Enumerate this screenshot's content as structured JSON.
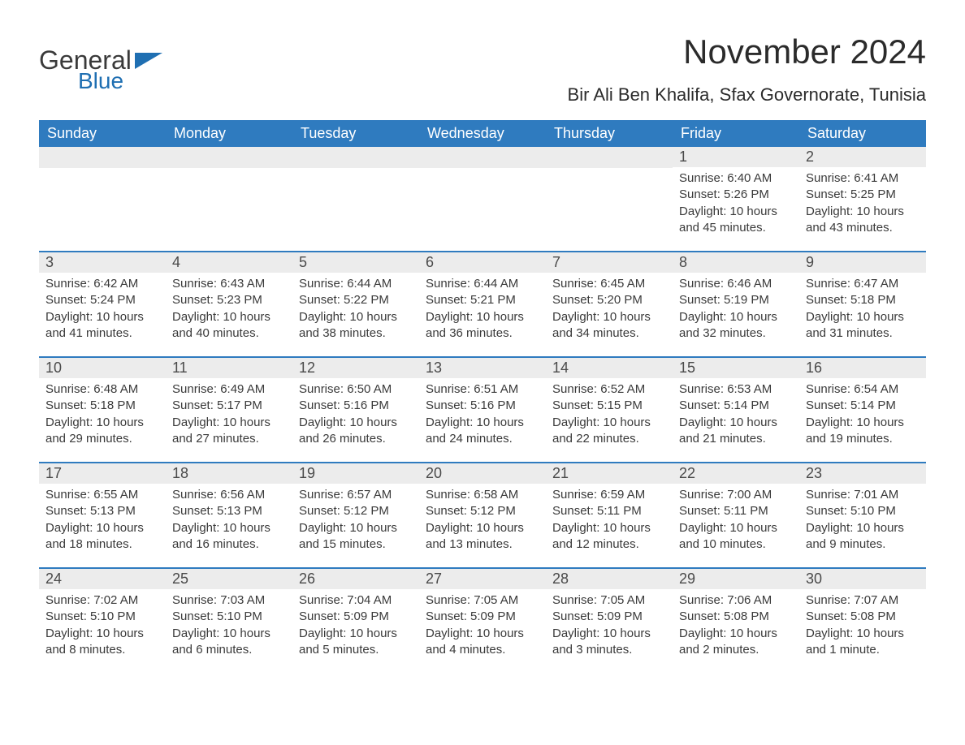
{
  "brand": {
    "logo_text_1": "General",
    "logo_text_2": "Blue",
    "logo_icon_color": "#1f6fb2",
    "logo_text_1_color": "#3a3a3a"
  },
  "header": {
    "month_title": "November 2024",
    "location": "Bir Ali Ben Khalifa, Sfax Governorate, Tunisia"
  },
  "colors": {
    "header_bg": "#2f7bbf",
    "header_text": "#ffffff",
    "daynum_bg": "#ececec",
    "daynum_text": "#4a4a4a",
    "body_text": "#3a3a3a",
    "week_border": "#2f7bbf",
    "page_bg": "#ffffff"
  },
  "typography": {
    "month_title_size": 42,
    "location_size": 22,
    "day_header_size": 18,
    "daynum_size": 18,
    "body_size": 15
  },
  "day_headers": [
    "Sunday",
    "Monday",
    "Tuesday",
    "Wednesday",
    "Thursday",
    "Friday",
    "Saturday"
  ],
  "weeks": [
    [
      {
        "empty": true
      },
      {
        "empty": true
      },
      {
        "empty": true
      },
      {
        "empty": true
      },
      {
        "empty": true
      },
      {
        "num": "1",
        "sunrise": "Sunrise: 6:40 AM",
        "sunset": "Sunset: 5:26 PM",
        "daylight": "Daylight: 10 hours and 45 minutes."
      },
      {
        "num": "2",
        "sunrise": "Sunrise: 6:41 AM",
        "sunset": "Sunset: 5:25 PM",
        "daylight": "Daylight: 10 hours and 43 minutes."
      }
    ],
    [
      {
        "num": "3",
        "sunrise": "Sunrise: 6:42 AM",
        "sunset": "Sunset: 5:24 PM",
        "daylight": "Daylight: 10 hours and 41 minutes."
      },
      {
        "num": "4",
        "sunrise": "Sunrise: 6:43 AM",
        "sunset": "Sunset: 5:23 PM",
        "daylight": "Daylight: 10 hours and 40 minutes."
      },
      {
        "num": "5",
        "sunrise": "Sunrise: 6:44 AM",
        "sunset": "Sunset: 5:22 PM",
        "daylight": "Daylight: 10 hours and 38 minutes."
      },
      {
        "num": "6",
        "sunrise": "Sunrise: 6:44 AM",
        "sunset": "Sunset: 5:21 PM",
        "daylight": "Daylight: 10 hours and 36 minutes."
      },
      {
        "num": "7",
        "sunrise": "Sunrise: 6:45 AM",
        "sunset": "Sunset: 5:20 PM",
        "daylight": "Daylight: 10 hours and 34 minutes."
      },
      {
        "num": "8",
        "sunrise": "Sunrise: 6:46 AM",
        "sunset": "Sunset: 5:19 PM",
        "daylight": "Daylight: 10 hours and 32 minutes."
      },
      {
        "num": "9",
        "sunrise": "Sunrise: 6:47 AM",
        "sunset": "Sunset: 5:18 PM",
        "daylight": "Daylight: 10 hours and 31 minutes."
      }
    ],
    [
      {
        "num": "10",
        "sunrise": "Sunrise: 6:48 AM",
        "sunset": "Sunset: 5:18 PM",
        "daylight": "Daylight: 10 hours and 29 minutes."
      },
      {
        "num": "11",
        "sunrise": "Sunrise: 6:49 AM",
        "sunset": "Sunset: 5:17 PM",
        "daylight": "Daylight: 10 hours and 27 minutes."
      },
      {
        "num": "12",
        "sunrise": "Sunrise: 6:50 AM",
        "sunset": "Sunset: 5:16 PM",
        "daylight": "Daylight: 10 hours and 26 minutes."
      },
      {
        "num": "13",
        "sunrise": "Sunrise: 6:51 AM",
        "sunset": "Sunset: 5:16 PM",
        "daylight": "Daylight: 10 hours and 24 minutes."
      },
      {
        "num": "14",
        "sunrise": "Sunrise: 6:52 AM",
        "sunset": "Sunset: 5:15 PM",
        "daylight": "Daylight: 10 hours and 22 minutes."
      },
      {
        "num": "15",
        "sunrise": "Sunrise: 6:53 AM",
        "sunset": "Sunset: 5:14 PM",
        "daylight": "Daylight: 10 hours and 21 minutes."
      },
      {
        "num": "16",
        "sunrise": "Sunrise: 6:54 AM",
        "sunset": "Sunset: 5:14 PM",
        "daylight": "Daylight: 10 hours and 19 minutes."
      }
    ],
    [
      {
        "num": "17",
        "sunrise": "Sunrise: 6:55 AM",
        "sunset": "Sunset: 5:13 PM",
        "daylight": "Daylight: 10 hours and 18 minutes."
      },
      {
        "num": "18",
        "sunrise": "Sunrise: 6:56 AM",
        "sunset": "Sunset: 5:13 PM",
        "daylight": "Daylight: 10 hours and 16 minutes."
      },
      {
        "num": "19",
        "sunrise": "Sunrise: 6:57 AM",
        "sunset": "Sunset: 5:12 PM",
        "daylight": "Daylight: 10 hours and 15 minutes."
      },
      {
        "num": "20",
        "sunrise": "Sunrise: 6:58 AM",
        "sunset": "Sunset: 5:12 PM",
        "daylight": "Daylight: 10 hours and 13 minutes."
      },
      {
        "num": "21",
        "sunrise": "Sunrise: 6:59 AM",
        "sunset": "Sunset: 5:11 PM",
        "daylight": "Daylight: 10 hours and 12 minutes."
      },
      {
        "num": "22",
        "sunrise": "Sunrise: 7:00 AM",
        "sunset": "Sunset: 5:11 PM",
        "daylight": "Daylight: 10 hours and 10 minutes."
      },
      {
        "num": "23",
        "sunrise": "Sunrise: 7:01 AM",
        "sunset": "Sunset: 5:10 PM",
        "daylight": "Daylight: 10 hours and 9 minutes."
      }
    ],
    [
      {
        "num": "24",
        "sunrise": "Sunrise: 7:02 AM",
        "sunset": "Sunset: 5:10 PM",
        "daylight": "Daylight: 10 hours and 8 minutes."
      },
      {
        "num": "25",
        "sunrise": "Sunrise: 7:03 AM",
        "sunset": "Sunset: 5:10 PM",
        "daylight": "Daylight: 10 hours and 6 minutes."
      },
      {
        "num": "26",
        "sunrise": "Sunrise: 7:04 AM",
        "sunset": "Sunset: 5:09 PM",
        "daylight": "Daylight: 10 hours and 5 minutes."
      },
      {
        "num": "27",
        "sunrise": "Sunrise: 7:05 AM",
        "sunset": "Sunset: 5:09 PM",
        "daylight": "Daylight: 10 hours and 4 minutes."
      },
      {
        "num": "28",
        "sunrise": "Sunrise: 7:05 AM",
        "sunset": "Sunset: 5:09 PM",
        "daylight": "Daylight: 10 hours and 3 minutes."
      },
      {
        "num": "29",
        "sunrise": "Sunrise: 7:06 AM",
        "sunset": "Sunset: 5:08 PM",
        "daylight": "Daylight: 10 hours and 2 minutes."
      },
      {
        "num": "30",
        "sunrise": "Sunrise: 7:07 AM",
        "sunset": "Sunset: 5:08 PM",
        "daylight": "Daylight: 10 hours and 1 minute."
      }
    ]
  ]
}
